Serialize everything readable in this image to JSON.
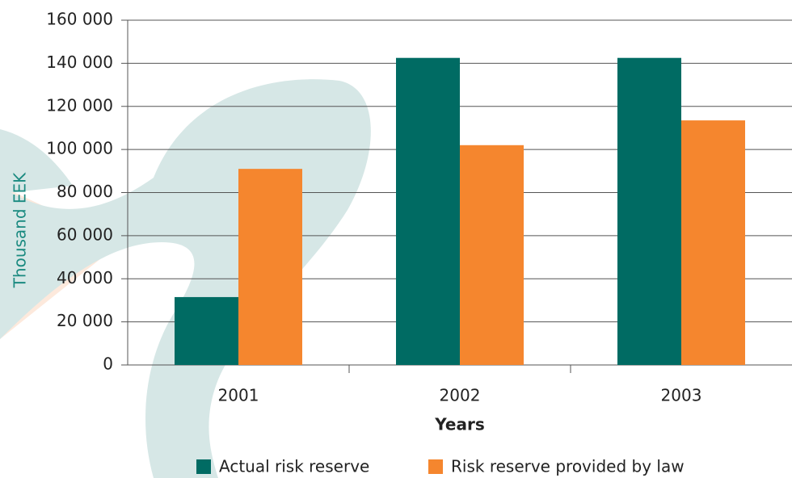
{
  "chart_data": {
    "type": "bar",
    "categories": [
      "2001",
      "2002",
      "2003"
    ],
    "series": [
      {
        "name": "Actual risk reserve",
        "color": "#006b63",
        "values": [
          31500,
          142500,
          142500
        ]
      },
      {
        "name": "Risk reserve provided by law",
        "color": "#f5862e",
        "values": [
          91000,
          102000,
          113500
        ]
      }
    ],
    "ylim": [
      0,
      160000
    ],
    "yticks": [
      0,
      {
        "value": 20000,
        "label": "20 000"
      },
      {
        "value": 40000,
        "label": "40 000"
      },
      {
        "value": 60000,
        "label": "60 000"
      },
      {
        "value": 80000,
        "label": "80 000"
      },
      {
        "value": 100000,
        "label": "100 000"
      },
      {
        "value": 120000,
        "label": "120 000"
      },
      {
        "value": 140000,
        "label": "140 000"
      },
      {
        "value": 160000,
        "label": "160 000"
      }
    ],
    "y_label": "Thousand EEK",
    "x_label": "Years",
    "grid": true
  }
}
